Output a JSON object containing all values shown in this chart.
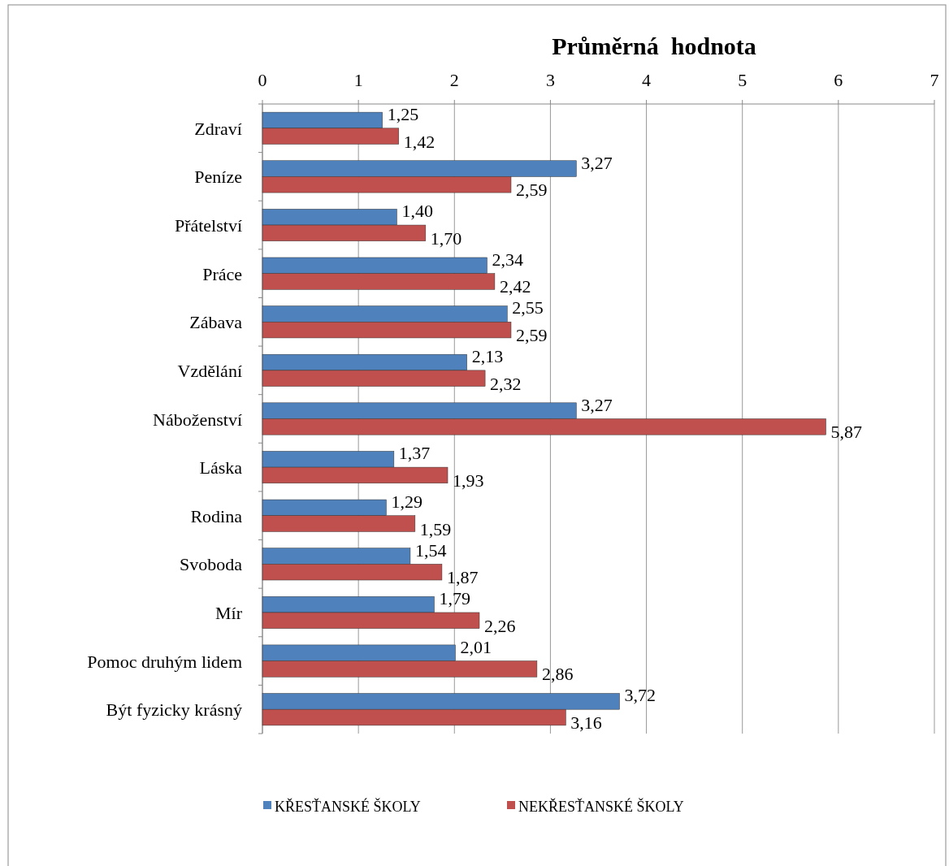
{
  "chart_data": {
    "type": "bar",
    "orientation": "horizontal",
    "title": "Průměrná  hodnota",
    "categories": [
      "Zdraví",
      "Peníze",
      "Přátelství",
      "Práce",
      "Zábava",
      "Vzdělání",
      "Náboženství",
      "Láska",
      "Rodina",
      "Svoboda",
      "Mír",
      "Pomoc druhým lidem",
      "Být fyzicky krásný"
    ],
    "series": [
      {
        "name": "KŘESŤANSKÉ ŠKOLY",
        "color": "#4f81bd",
        "values": [
          1.25,
          3.27,
          1.4,
          2.34,
          2.55,
          2.13,
          3.27,
          1.37,
          1.29,
          1.54,
          1.79,
          2.01,
          3.72
        ],
        "value_labels": [
          "1,25",
          "3,27",
          "1,40",
          "2,34",
          "2,55",
          "2,13",
          "3,27",
          "1,37",
          "1,29",
          "1,54",
          "1,79",
          "2,01",
          "3,72"
        ]
      },
      {
        "name": "NEKŘESŤANSKÉ ŠKOLY",
        "color": "#c0504d",
        "values": [
          1.42,
          2.59,
          1.7,
          2.42,
          2.59,
          2.32,
          5.87,
          1.93,
          1.59,
          1.87,
          2.26,
          2.86,
          3.16
        ],
        "value_labels": [
          "1,42",
          "2,59",
          "1,70",
          "2,42",
          "2,59",
          "2,32",
          "5,87",
          "1,93",
          "1,59",
          "1,87",
          "2,26",
          "2,86",
          "3,16"
        ]
      }
    ],
    "xlim": [
      0,
      7
    ],
    "xticks": [
      0,
      1,
      2,
      3,
      4,
      5,
      6,
      7
    ],
    "grid": "x",
    "legend": "bottom"
  }
}
